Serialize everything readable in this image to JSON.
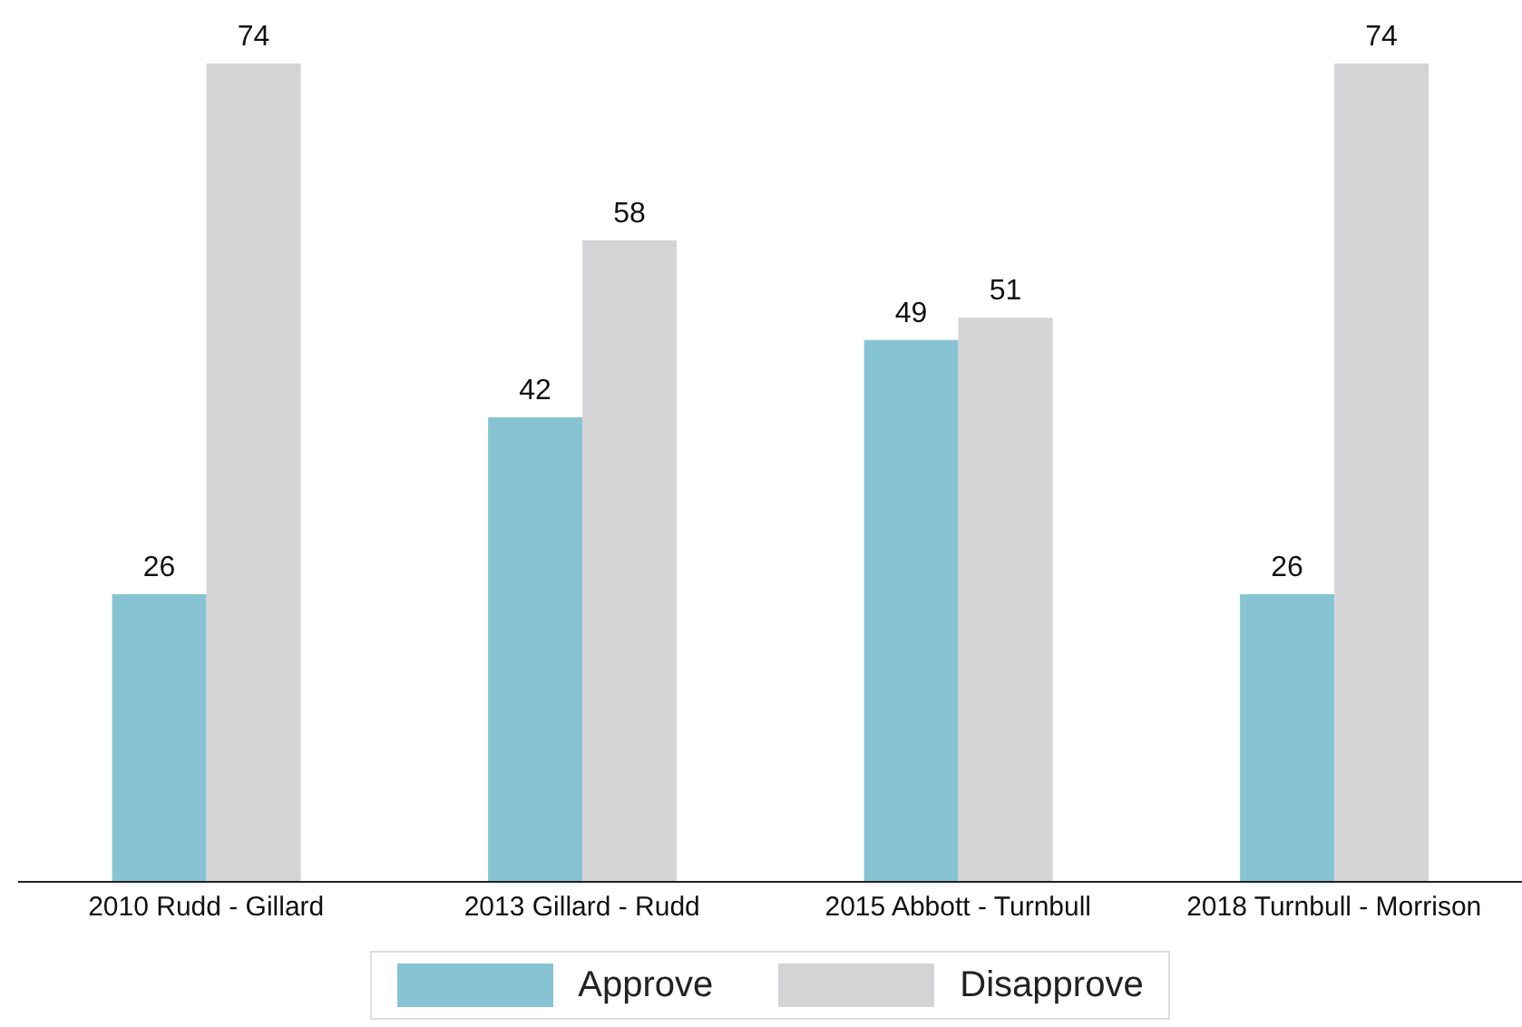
{
  "chart_data": {
    "type": "bar",
    "categories": [
      "2010 Rudd - Gillard",
      "2013 Gillard - Rudd",
      "2015 Abbott - Turnbull",
      "2018 Turnbull - Morrison"
    ],
    "series": [
      {
        "name": "Approve",
        "color": "#87c4d3",
        "values": [
          26,
          42,
          49,
          26
        ]
      },
      {
        "name": "Disapprove",
        "color": "#d4d4d6",
        "values": [
          74,
          58,
          51,
          74
        ]
      }
    ],
    "data_labels": true,
    "legend": "bottom",
    "grid": false
  }
}
